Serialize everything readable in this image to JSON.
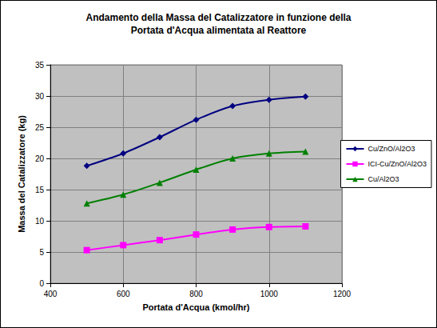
{
  "chart_data": {
    "type": "line",
    "title": "Andamento della Massa del Catalizzatore in funzione della\nPortata d'Acqua alimentata al Reattore",
    "x_label": "Portata d'Acqua (kmol/hr)",
    "y_label": "Massa del Catalizzatore (kg)",
    "x": [
      500,
      600,
      700,
      800,
      900,
      1000,
      1100
    ],
    "series": [
      {
        "name": "Cu/ZnO/Al2O3",
        "color": "#000080",
        "marker": "diamond",
        "values": [
          18.8,
          20.8,
          23.4,
          26.2,
          28.4,
          29.4,
          29.9
        ]
      },
      {
        "name": "ICI-Cu/ZnO/Al2O3",
        "color": "#ff00ff",
        "marker": "square",
        "values": [
          5.3,
          6.1,
          6.9,
          7.8,
          8.6,
          9.0,
          9.1
        ]
      },
      {
        "name": "Cu/Al2O3",
        "color": "#008000",
        "marker": "triangle",
        "values": [
          12.8,
          14.2,
          16.1,
          18.2,
          20.0,
          20.8,
          21.1
        ]
      }
    ],
    "xlim": [
      400,
      1200
    ],
    "xticks": [
      400,
      600,
      800,
      1000,
      1200
    ],
    "ylim": [
      0,
      35
    ],
    "yticks": [
      0,
      5,
      10,
      15,
      20,
      25,
      30,
      35
    ],
    "grid": true,
    "legend": "right"
  }
}
